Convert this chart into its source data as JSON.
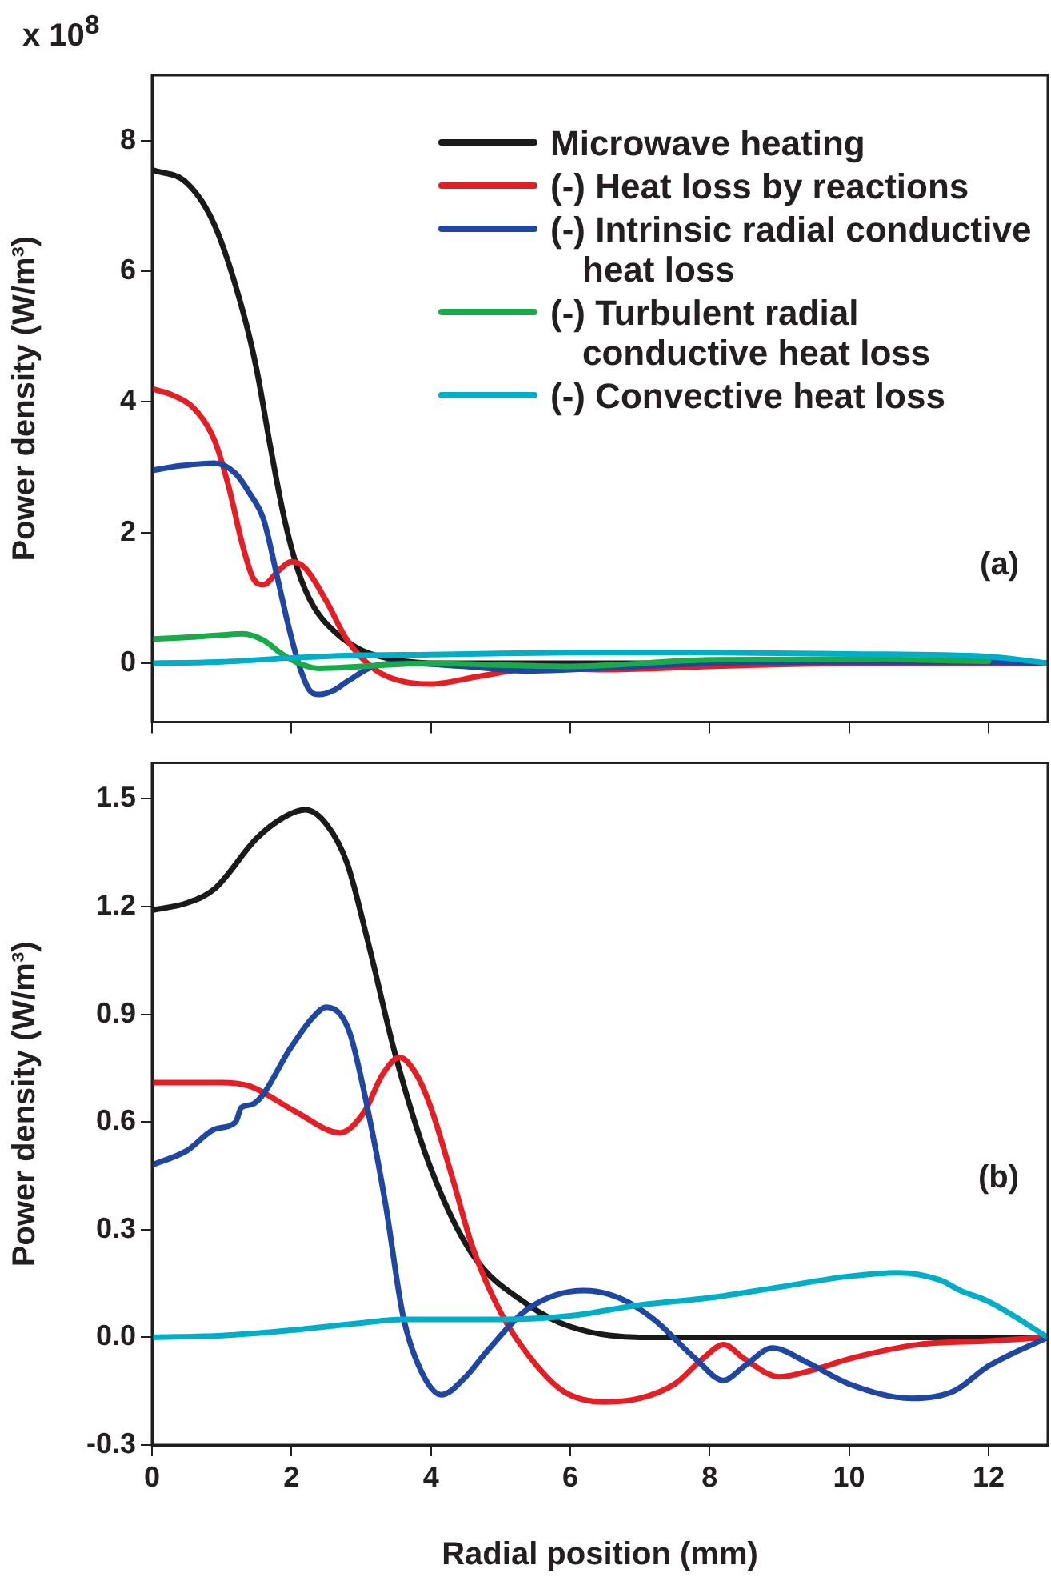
{
  "chart_data": [
    {
      "type": "line",
      "ylabel": "Power density (W/m³)",
      "annotations": [
        "x 10$^{8}$",
        "(a)"
      ],
      "xlim": [
        0,
        12.85
      ],
      "xticks": [
        0,
        2,
        4,
        6,
        8,
        10,
        12
      ],
      "ylim": [
        -0.9,
        9
      ],
      "yticks": [
        0,
        2,
        4,
        6,
        8
      ],
      "tick_labels": "y",
      "legend": "top right",
      "marker": "none",
      "line_style": "solid",
      "series": [
        {
          "name": "Microwave heating",
          "color": "#1a1a1a",
          "x": [
            0,
            0.5,
            0.9,
            1.3,
            1.5,
            1.7,
            1.9,
            2.1,
            2.3,
            2.6,
            3,
            3.5,
            4,
            6,
            8,
            10,
            12,
            12.85
          ],
          "values": [
            7.55,
            7.35,
            6.7,
            5.4,
            4.5,
            3.3,
            2.2,
            1.4,
            0.9,
            0.5,
            0.2,
            0.05,
            0,
            0,
            0,
            0,
            0,
            0
          ]
        },
        {
          "name": "(-) Heat loss by reactions",
          "color": "#e31e24",
          "x": [
            0,
            0.3,
            0.6,
            0.9,
            1.1,
            1.3,
            1.45,
            1.6,
            1.8,
            2.0,
            2.2,
            2.5,
            2.8,
            3.2,
            3.6,
            4.0,
            4.7,
            5.5,
            6.5,
            8,
            10,
            12,
            12.85
          ],
          "values": [
            4.2,
            4.1,
            3.9,
            3.4,
            2.7,
            1.8,
            1.3,
            1.2,
            1.4,
            1.55,
            1.45,
            0.95,
            0.35,
            -0.1,
            -0.28,
            -0.32,
            -0.2,
            -0.08,
            -0.1,
            -0.05,
            0,
            0,
            0
          ]
        },
        {
          "name": "(-) Intrinsic radial conductive heat loss",
          "color": "#1f46a0",
          "x": [
            0,
            0.4,
            0.9,
            1.2,
            1.4,
            1.6,
            1.8,
            1.95,
            2.1,
            2.25,
            2.4,
            2.6,
            2.8,
            3.2,
            3.6,
            4.5,
            5.4,
            6,
            7,
            8,
            10,
            12,
            12.85
          ],
          "values": [
            2.95,
            3.02,
            3.06,
            2.9,
            2.6,
            2.2,
            1.3,
            0.6,
            0,
            -0.4,
            -0.48,
            -0.42,
            -0.28,
            -0.04,
            0,
            -0.05,
            -0.12,
            -0.1,
            -0.05,
            0,
            0.02,
            0.02,
            0
          ]
        },
        {
          "name": "(-) Turbulent radial conductive heat loss",
          "color": "#1aaa4b",
          "x": [
            0,
            0.6,
            1.0,
            1.3,
            1.6,
            1.85,
            2.1,
            2.4,
            3,
            4,
            5,
            6,
            8,
            10,
            12
          ],
          "values": [
            0.37,
            0.4,
            0.43,
            0.45,
            0.35,
            0.15,
            0,
            -0.08,
            -0.05,
            0,
            -0.03,
            -0.05,
            0.05,
            0.06,
            0.03
          ]
        },
        {
          "name": "(-) Convective heat loss",
          "color": "#00aec7",
          "x": [
            0,
            1,
            2,
            3,
            4,
            5,
            6,
            8,
            10,
            12,
            12.85
          ],
          "values": [
            0,
            0.02,
            0.08,
            0.12,
            0.13,
            0.15,
            0.16,
            0.16,
            0.14,
            0.1,
            0
          ]
        }
      ]
    },
    {
      "type": "line",
      "xlabel": "Radial position (mm)",
      "ylabel": "Power density (W/m³)",
      "annotations": [
        "(b)"
      ],
      "xlim": [
        0,
        12.85
      ],
      "xticks": [
        0,
        2,
        4,
        6,
        8,
        10,
        12
      ],
      "ylim": [
        -0.3,
        1.6
      ],
      "yticks": [
        {
          "value": -0.3,
          "label": "-0.3"
        },
        {
          "value": 0,
          "label": "0.0"
        },
        0.3,
        0.6,
        0.9,
        1.2,
        1.5
      ],
      "marker": "none",
      "line_style": "solid",
      "series": [
        {
          "color": "#1a1a1a",
          "x": [
            0,
            0.5,
            0.9,
            1.5,
            1.9,
            2.2,
            2.5,
            2.8,
            3.1,
            3.5,
            4,
            4.6,
            5.4,
            6,
            7,
            8,
            10,
            12,
            12.85
          ],
          "values": [
            1.19,
            1.21,
            1.25,
            1.39,
            1.45,
            1.47,
            1.43,
            1.32,
            1.1,
            0.78,
            0.47,
            0.23,
            0.09,
            0.03,
            0,
            0,
            0,
            0,
            0
          ]
        },
        {
          "color": "#e31e24",
          "x": [
            0,
            1,
            1.4,
            2.05,
            2.7,
            3.05,
            3.3,
            3.55,
            3.8,
            4.0,
            4.3,
            4.6,
            5,
            5.4,
            5.9,
            6.5,
            7,
            7.5,
            7.9,
            8.2,
            8.5,
            9.0,
            9.5,
            10,
            11,
            12,
            12.85
          ],
          "values": [
            0.71,
            0.71,
            0.7,
            0.63,
            0.57,
            0.63,
            0.73,
            0.78,
            0.73,
            0.64,
            0.45,
            0.25,
            0.07,
            -0.05,
            -0.15,
            -0.18,
            -0.17,
            -0.13,
            -0.06,
            -0.02,
            -0.06,
            -0.11,
            -0.09,
            -0.06,
            -0.02,
            -0.01,
            0
          ]
        },
        {
          "color": "#1f46a0",
          "x": [
            0,
            0.5,
            0.9,
            1.2,
            1.28,
            1.45,
            2,
            2.3,
            2.5,
            2.7,
            2.85,
            3.1,
            3.35,
            3.6,
            3.85,
            4.15,
            4.5,
            4.8,
            5.4,
            6.2,
            6.7,
            7.2,
            7.8,
            8.2,
            8.5,
            8.9,
            9.4,
            10,
            10.9,
            11.5,
            12,
            12.85
          ],
          "values": [
            0.48,
            0.52,
            0.58,
            0.6,
            0.64,
            0.65,
            0.81,
            0.89,
            0.92,
            0.9,
            0.84,
            0.63,
            0.37,
            0.06,
            -0.09,
            -0.16,
            -0.11,
            -0.04,
            0.08,
            0.13,
            0.11,
            0.05,
            -0.06,
            -0.12,
            -0.08,
            -0.03,
            -0.07,
            -0.13,
            -0.17,
            -0.15,
            -0.08,
            0
          ]
        },
        {
          "color": "#00aec7",
          "x": [
            0,
            1,
            2,
            3,
            3.6,
            5,
            6,
            7,
            8,
            9,
            10,
            10.7,
            11.3,
            11.6,
            12,
            12.85
          ],
          "values": [
            0,
            0.005,
            0.02,
            0.04,
            0.05,
            0.05,
            0.06,
            0.09,
            0.11,
            0.14,
            0.17,
            0.18,
            0.16,
            0.13,
            0.1,
            0
          ]
        }
      ]
    }
  ]
}
